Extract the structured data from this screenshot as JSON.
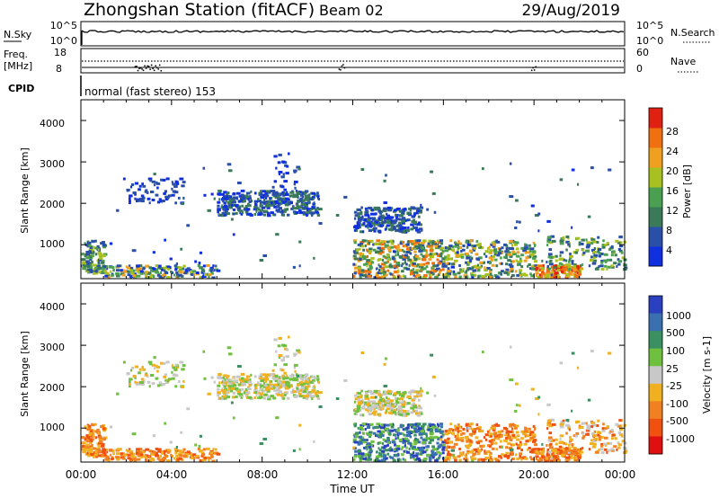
{
  "header": {
    "station": "Zhongshan Station (fitACF)",
    "beam": "Beam 02",
    "date": "29/Aug/2019"
  },
  "sky_panel": {
    "left_label": "N.Sky",
    "right_label": "N.Search",
    "left_ticks": [
      "10^5",
      "10^0"
    ],
    "right_ticks": [
      "10^5",
      "10^0"
    ]
  },
  "freq_panel": {
    "left_label_1": "Freq.",
    "left_label_2": "[MHz]",
    "right_label": "Nave",
    "left_ticks": [
      "18",
      "8"
    ],
    "right_ticks": [
      "60",
      "0"
    ]
  },
  "cpid": {
    "label": "CPID",
    "mode": "normal (fast stereo) 153"
  },
  "x_axis": {
    "title": "Time UT",
    "ticks": [
      "00:00",
      "04:00",
      "08:00",
      "12:00",
      "16:00",
      "20:00",
      "00:00"
    ]
  },
  "colors": {
    "power_scale": [
      "#1030e0",
      "#2a4fa8",
      "#3a7a58",
      "#4aa050",
      "#a8c020",
      "#f0a020",
      "#f07010",
      "#e02010"
    ],
    "velocity_scale": [
      "#e01010",
      "#f05010",
      "#f08020",
      "#f0b020",
      "#c8c8c8",
      "#70c040",
      "#3a9060",
      "#3a70b0",
      "#2a40c0"
    ]
  },
  "chart_data": [
    {
      "type": "heatmap",
      "title": "Power",
      "xlabel": "Time UT",
      "ylabel": "Slant Range [km]",
      "xlim": [
        "00:00",
        "24:00"
      ],
      "ylim": [
        180,
        4500
      ],
      "yticks": [
        "1000",
        "2000",
        "3000",
        "4000"
      ],
      "colorbar": {
        "label": "Power [dB]",
        "range": [
          0,
          32
        ],
        "ticks": [
          "4",
          "8",
          "12",
          "16",
          "20",
          "24",
          "28"
        ]
      },
      "echo_regions": [
        {
          "time": "00:00-01:00",
          "range_km": "400-1100",
          "power_db": "8-16"
        },
        {
          "time": "02:00-04:30",
          "range_km": "2000-2600",
          "power_db": "4-8"
        },
        {
          "time": "06:00-10:30",
          "range_km": "1700-2300",
          "power_db": "4-10"
        },
        {
          "time": "12:00-15:00",
          "range_km": "1200-1900",
          "power_db": "4-8"
        },
        {
          "time": "12:00-21:00",
          "range_km": "200-1000",
          "power_db": "8-24"
        },
        {
          "time": "20:00-22:00",
          "range_km": "200-500",
          "power_db": "20-28"
        }
      ]
    },
    {
      "type": "heatmap",
      "title": "Velocity",
      "xlabel": "Time UT",
      "ylabel": "Slant Range [km]",
      "xlim": [
        "00:00",
        "24:00"
      ],
      "ylim": [
        180,
        4500
      ],
      "yticks": [
        "1000",
        "2000",
        "3000",
        "4000"
      ],
      "colorbar": {
        "label": "Velocity [m s-1]",
        "ticks": [
          "1000",
          "500",
          "100",
          "25",
          "-25",
          "-100",
          "-500",
          "-1000"
        ]
      },
      "echo_regions": [
        {
          "time": "00:00-04:00",
          "range_km": "200-1000",
          "velocity": "-100 to -500"
        },
        {
          "time": "06:00-10:30",
          "range_km": "1700-2300",
          "velocity": "-25 to 25"
        },
        {
          "time": "12:00-15:00",
          "range_km": "1300-1900",
          "velocity": "-25 to 25"
        },
        {
          "time": "12:00-16:00",
          "range_km": "200-1100",
          "velocity": "100 to 1000"
        },
        {
          "time": "16:00-24:00",
          "range_km": "200-1100",
          "velocity": "-100 to -500"
        }
      ]
    }
  ]
}
